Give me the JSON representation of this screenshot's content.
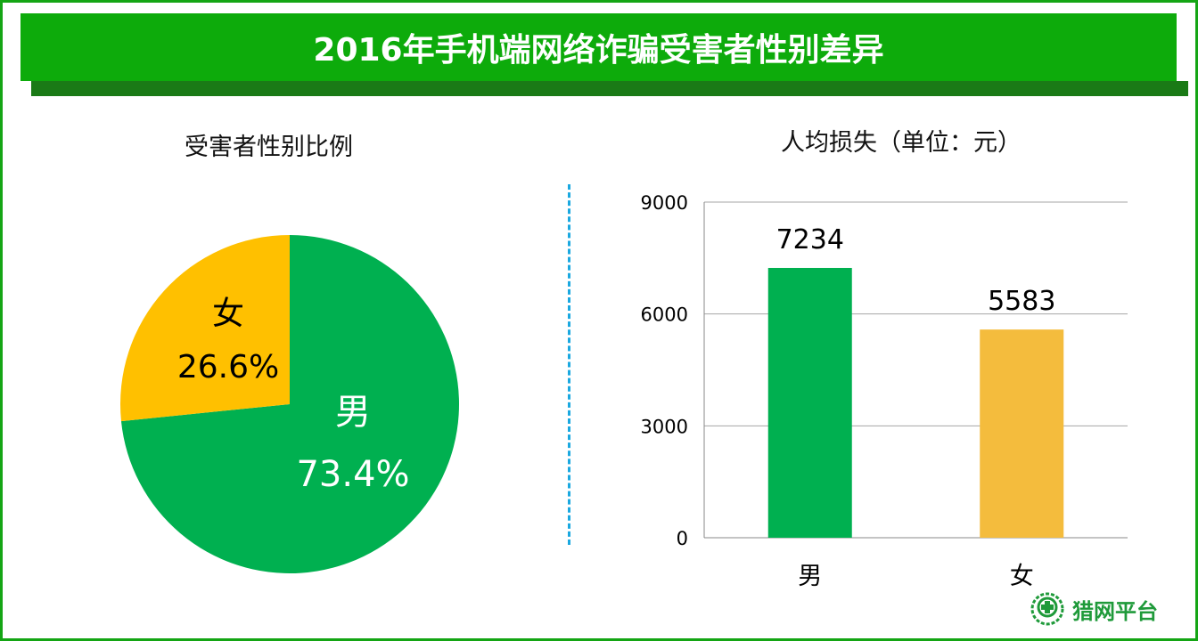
{
  "title": "2016年手机端网络诈骗受害者性别差异",
  "brand": {
    "name": "猎网平台",
    "color": "#1f9a3a"
  },
  "colors": {
    "male": "#00b050",
    "female_pie": "#ffc000",
    "female_bar": "#f4bc3d",
    "title_bg": "#0dab0b",
    "divider": "#1aa8e0"
  },
  "chart_data": [
    {
      "type": "pie",
      "title": "受害者性别比例",
      "slices": [
        {
          "label": "男",
          "value": 73.4,
          "display": "73.4%"
        },
        {
          "label": "女",
          "value": 26.6,
          "display": "26.6%"
        }
      ]
    },
    {
      "type": "bar",
      "title": "人均损失（单位：元）",
      "categories": [
        "男",
        "女"
      ],
      "values": [
        7234,
        5583
      ],
      "value_labels": [
        "7234",
        "5583"
      ],
      "ylim": [
        0,
        9000
      ],
      "yticks": [
        "0",
        "3000",
        "6000",
        "9000"
      ],
      "grid": true
    }
  ]
}
